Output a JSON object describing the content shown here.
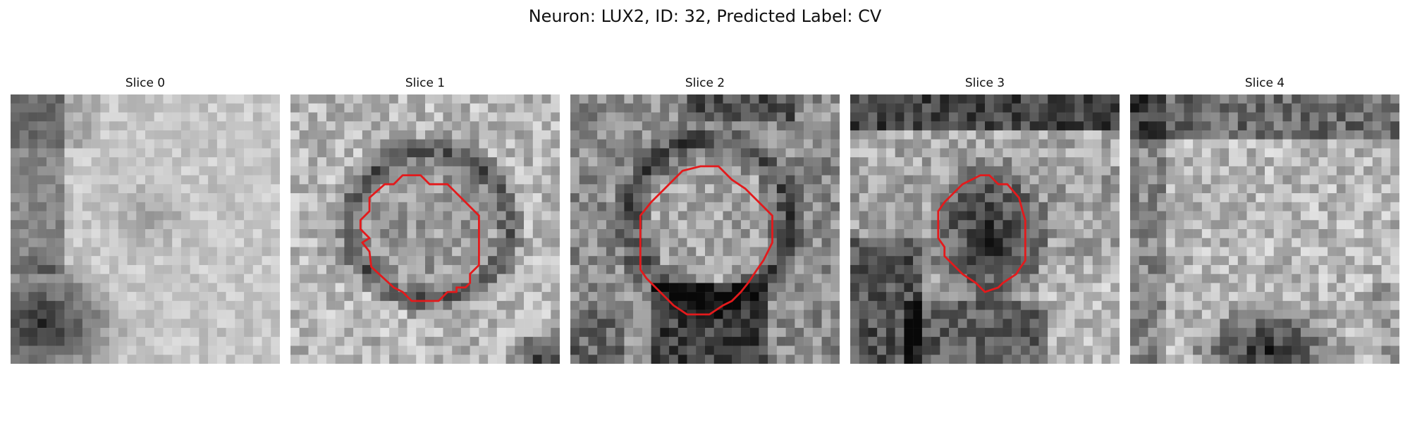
{
  "figure": {
    "title": "Neuron: LUX2, ID: 32, Predicted Label: CV"
  },
  "panels": [
    {
      "title": "Slice 0",
      "has_contour": false,
      "overall_brightness": "mixed",
      "dark_region": "bottom-left"
    },
    {
      "title": "Slice 1",
      "has_contour": true,
      "overall_brightness": "light",
      "dark_region": "center-ring"
    },
    {
      "title": "Slice 2",
      "has_contour": true,
      "overall_brightness": "medium",
      "dark_region": "center-ring"
    },
    {
      "title": "Slice 3",
      "has_contour": true,
      "overall_brightness": "mixed",
      "dark_region": "center"
    },
    {
      "title": "Slice 4",
      "has_contour": false,
      "overall_brightness": "light",
      "dark_region": "top-and-bottom"
    }
  ],
  "colors": {
    "contour": "#e31a1c",
    "background": "#ffffff"
  }
}
